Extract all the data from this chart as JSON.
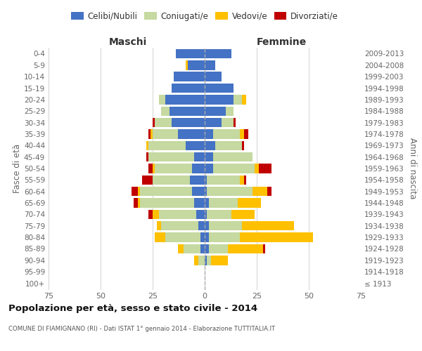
{
  "age_groups": [
    "100+",
    "95-99",
    "90-94",
    "85-89",
    "80-84",
    "75-79",
    "70-74",
    "65-69",
    "60-64",
    "55-59",
    "50-54",
    "45-49",
    "40-44",
    "35-39",
    "30-34",
    "25-29",
    "20-24",
    "15-19",
    "10-14",
    "5-9",
    "0-4"
  ],
  "birth_years": [
    "≤ 1913",
    "1914-1918",
    "1919-1923",
    "1924-1928",
    "1929-1933",
    "1934-1938",
    "1939-1943",
    "1944-1948",
    "1949-1953",
    "1954-1958",
    "1959-1963",
    "1964-1968",
    "1969-1973",
    "1974-1978",
    "1979-1983",
    "1984-1988",
    "1989-1993",
    "1994-1998",
    "1999-2003",
    "2004-2008",
    "2009-2013"
  ],
  "maschi": {
    "celibi": [
      0,
      0,
      0,
      2,
      2,
      3,
      4,
      5,
      6,
      7,
      6,
      5,
      9,
      13,
      16,
      17,
      19,
      16,
      15,
      8,
      14
    ],
    "coniugati": [
      0,
      0,
      3,
      8,
      17,
      18,
      18,
      26,
      25,
      18,
      18,
      22,
      18,
      12,
      8,
      4,
      3,
      0,
      0,
      0,
      0
    ],
    "vedovi": [
      0,
      0,
      2,
      3,
      5,
      2,
      3,
      1,
      1,
      0,
      1,
      0,
      1,
      1,
      0,
      0,
      0,
      0,
      0,
      1,
      0
    ],
    "divorziati": [
      0,
      0,
      0,
      0,
      0,
      0,
      2,
      2,
      3,
      5,
      2,
      1,
      0,
      1,
      1,
      0,
      0,
      0,
      0,
      0,
      0
    ]
  },
  "femmine": {
    "nubili": [
      0,
      0,
      1,
      2,
      2,
      2,
      1,
      2,
      1,
      1,
      4,
      4,
      5,
      4,
      8,
      10,
      14,
      14,
      8,
      5,
      13
    ],
    "coniugate": [
      0,
      0,
      2,
      9,
      15,
      16,
      12,
      14,
      22,
      16,
      20,
      19,
      13,
      13,
      6,
      4,
      4,
      0,
      0,
      0,
      0
    ],
    "vedove": [
      0,
      0,
      8,
      17,
      35,
      25,
      11,
      11,
      7,
      2,
      2,
      0,
      0,
      2,
      0,
      0,
      2,
      0,
      0,
      0,
      0
    ],
    "divorziate": [
      0,
      0,
      0,
      1,
      0,
      0,
      0,
      0,
      2,
      1,
      6,
      0,
      1,
      2,
      1,
      0,
      0,
      0,
      0,
      0,
      0
    ]
  },
  "colors": {
    "celibi": "#4472c4",
    "coniugati": "#c5d9a0",
    "vedovi": "#ffc000",
    "divorziati": "#c00000"
  },
  "legend_labels": [
    "Celibi/Nubili",
    "Coniugati/e",
    "Vedovi/e",
    "Divorziati/e"
  ],
  "title": "Popolazione per età, sesso e stato civile - 2014",
  "subtitle": "COMUNE DI FIAMIGNANO (RI) - Dati ISTAT 1° gennaio 2014 - Elaborazione TUTTITALIA.IT",
  "maschi_label": "Maschi",
  "femmine_label": "Femmine",
  "ylabel_left": "Fasce di età",
  "ylabel_right": "Anni di nascita",
  "xlim": 75,
  "bg_color": "#ffffff",
  "grid_color": "#cccccc",
  "label_color": "#666666"
}
